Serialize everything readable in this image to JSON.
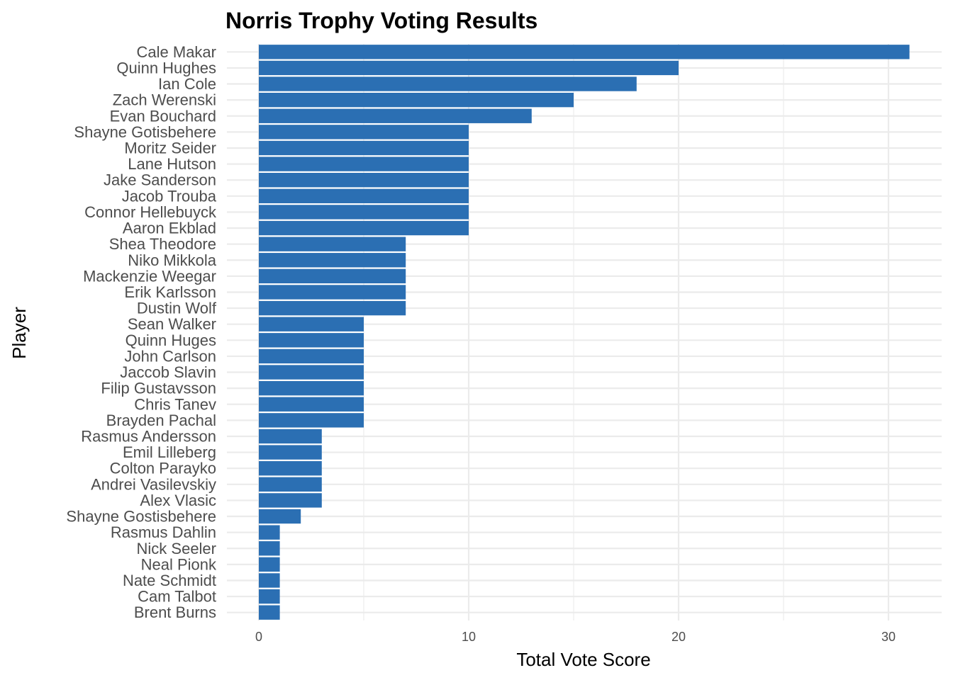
{
  "chart_data": {
    "type": "bar",
    "orientation": "horizontal",
    "title": "Norris Trophy Voting Results",
    "xlabel": "Total Vote Score",
    "ylabel": "Player",
    "categories": [
      "Cale Makar",
      "Quinn Hughes",
      "Ian Cole",
      "Zach Werenski",
      "Evan Bouchard",
      "Shayne Gotisbehere",
      "Moritz Seider",
      "Lane Hutson",
      "Jake Sanderson",
      "Jacob Trouba",
      "Connor Hellebuyck",
      "Aaron Ekblad",
      "Shea Theodore",
      "Niko Mikkola",
      "Mackenzie Weegar",
      "Erik Karlsson",
      "Dustin Wolf",
      "Sean Walker",
      "Quinn Huges",
      "John Carlson",
      "Jaccob Slavin",
      "Filip Gustavsson",
      "Chris Tanev",
      "Brayden Pachal",
      "Rasmus Andersson",
      "Emil Lilleberg",
      "Colton Parayko",
      "Andrei Vasilevskiy",
      "Alex Vlasic",
      "Shayne Gostisbehere",
      "Rasmus Dahlin",
      "Nick Seeler",
      "Neal Pionk",
      "Nate Schmidt",
      "Cam Talbot",
      "Brent Burns"
    ],
    "values": [
      31,
      20,
      18,
      15,
      13,
      10,
      10,
      10,
      10,
      10,
      10,
      10,
      7,
      7,
      7,
      7,
      7,
      5,
      5,
      5,
      5,
      5,
      5,
      5,
      3,
      3,
      3,
      3,
      3,
      2,
      1,
      1,
      1,
      1,
      1,
      1
    ],
    "xlim": [
      0,
      32.5
    ],
    "x_ticks": [
      0,
      10,
      20,
      30
    ],
    "x_minor_ticks": [
      5,
      15,
      25
    ],
    "grid": true,
    "legend": "none",
    "bar_color": "#2b6fb3"
  }
}
